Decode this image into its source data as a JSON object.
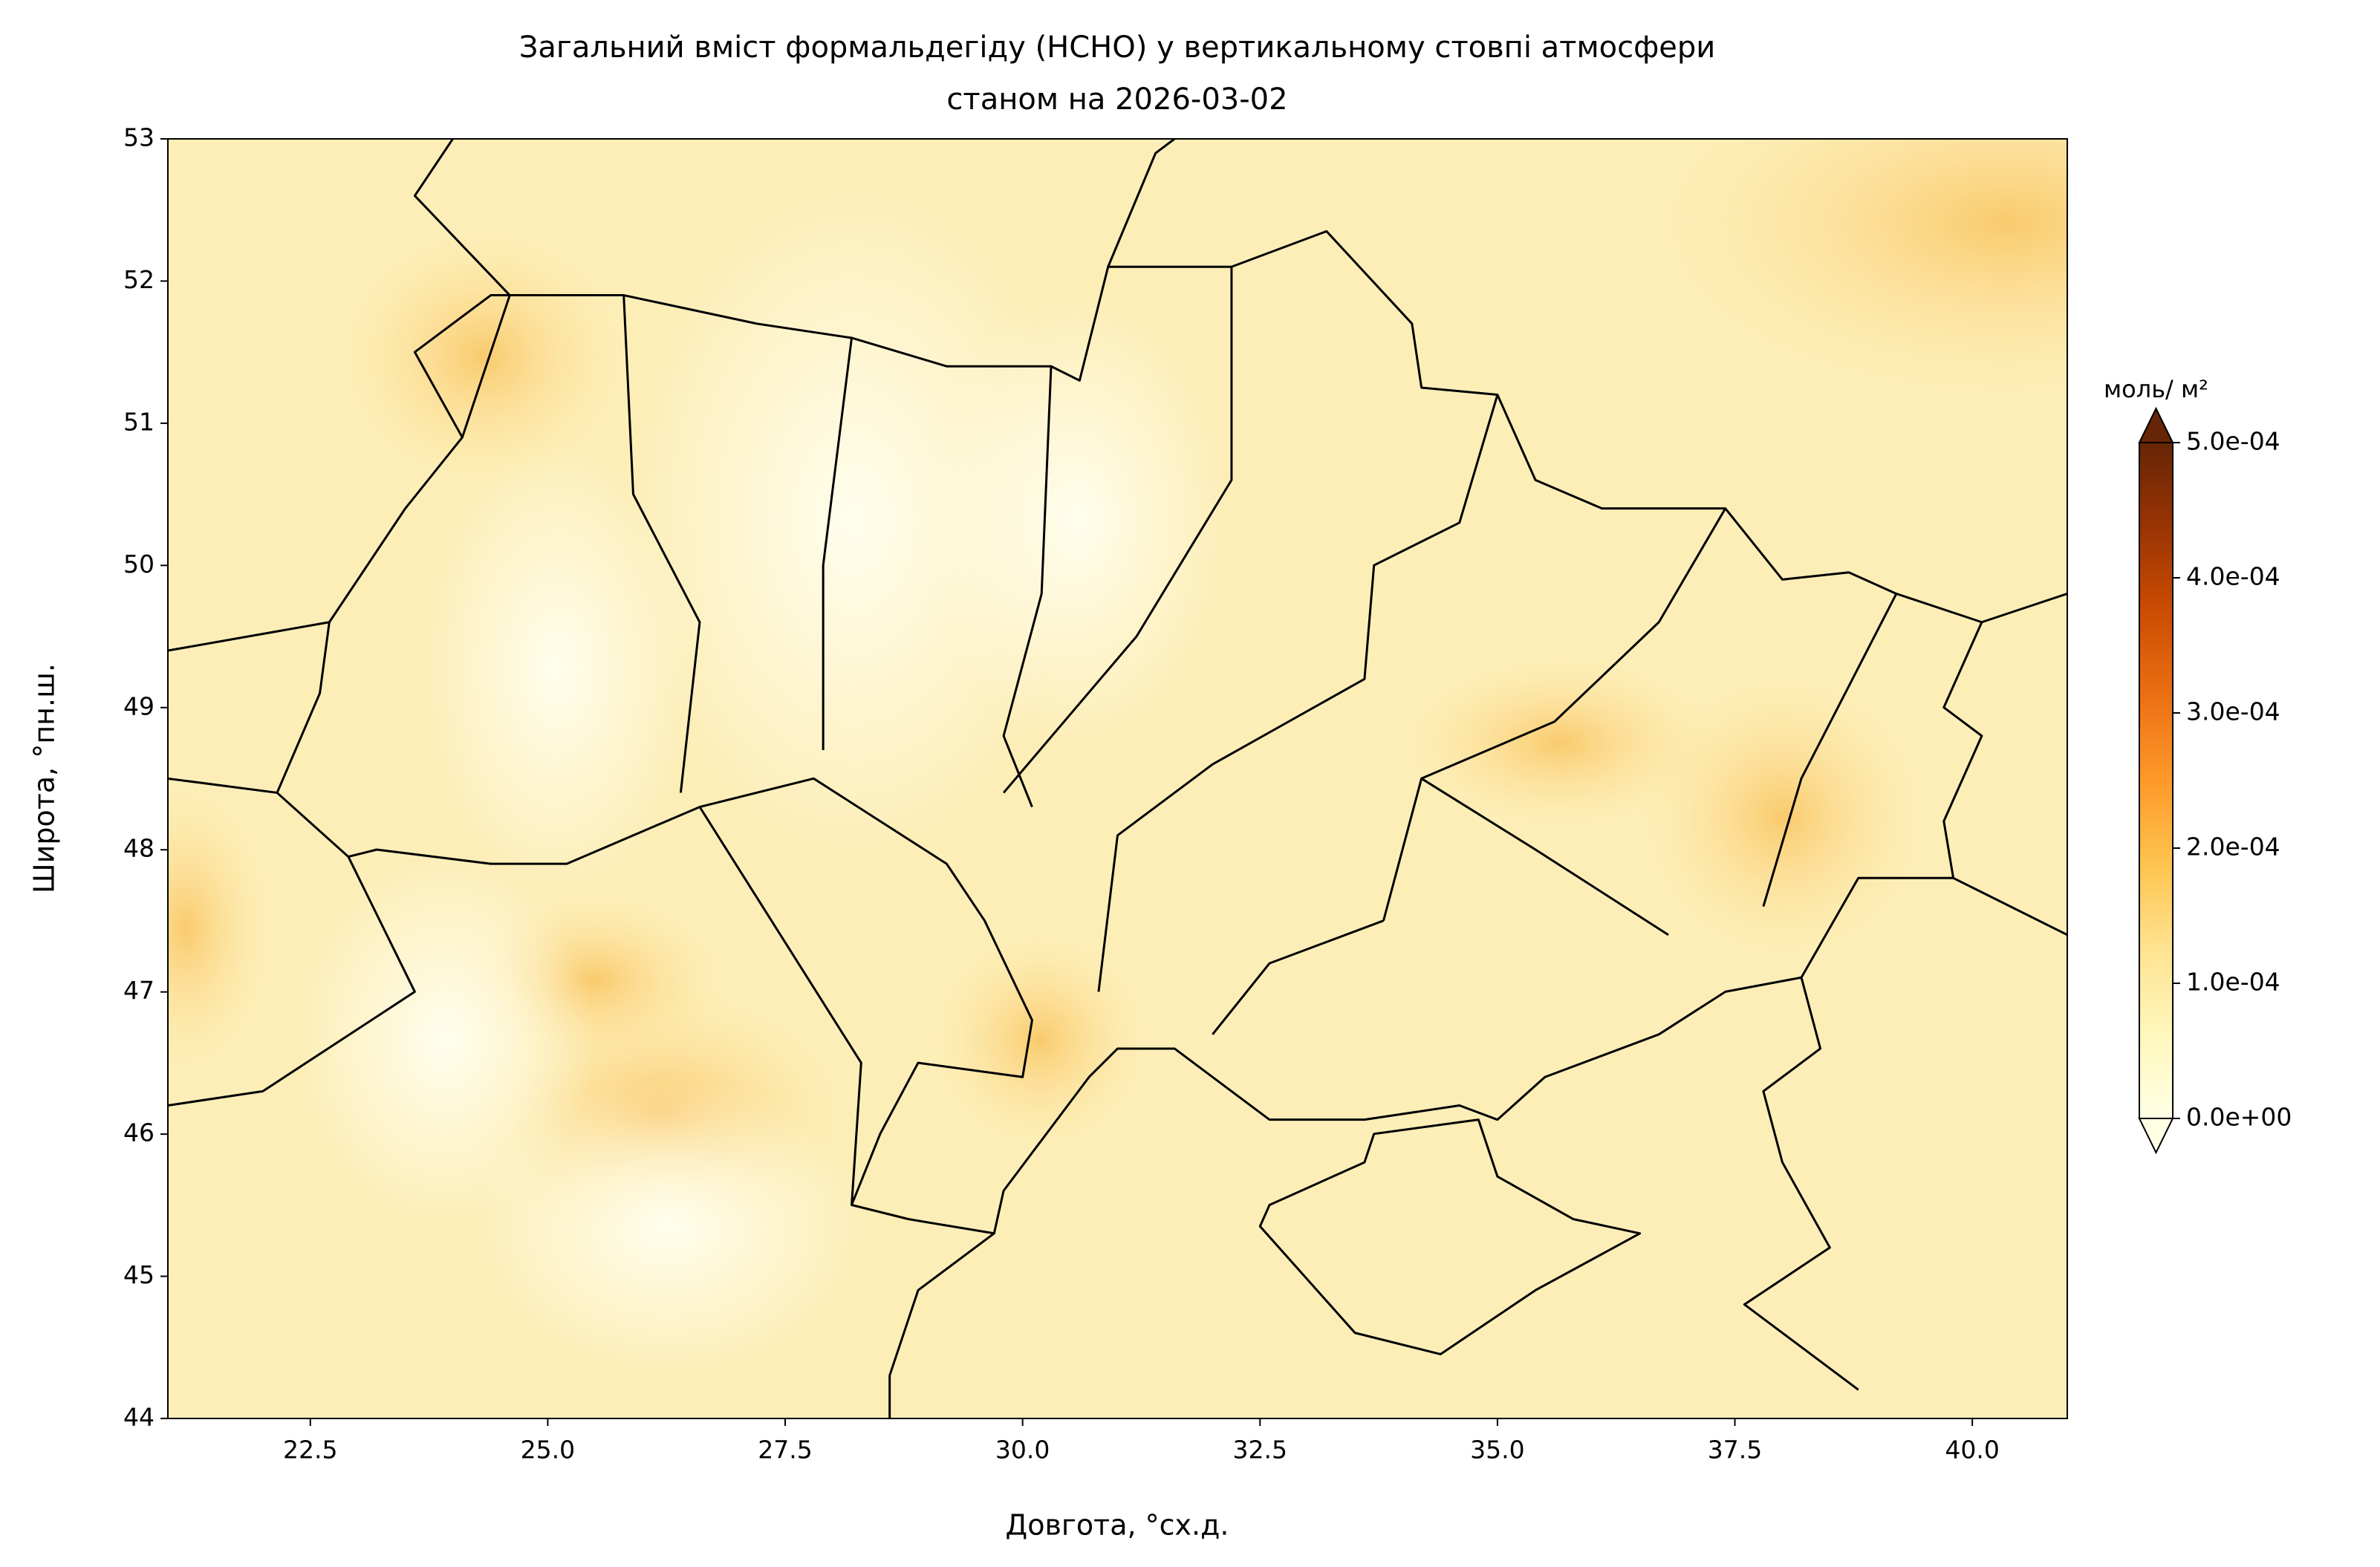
{
  "chart_data": {
    "type": "map",
    "title": "Загальний вміст формальдегіду (HCHO) у вертикальному стовпі атмосфери",
    "subtitle": "станом на 2026-03-02",
    "x_label": "Довгота, °сх.д.",
    "y_label": "Широта, °пн.ш.",
    "xlim": [
      21,
      41
    ],
    "ylim": [
      44,
      53
    ],
    "xticks": [
      22.5,
      {
        "value": 25,
        "label": "25.0"
      },
      27.5,
      {
        "value": 30,
        "label": "30.0"
      },
      32.5,
      {
        "value": 35,
        "label": "35.0"
      },
      37.5,
      {
        "value": 40,
        "label": "40.0"
      }
    ],
    "yticks": [
      44,
      45,
      46,
      47,
      48,
      49,
      50,
      51,
      52,
      53
    ],
    "colorbar": {
      "label": "моль/ м²",
      "lim": [
        0,
        0.0005
      ],
      "ticks": [
        {
          "value": 0,
          "label": "0.0e+00"
        },
        {
          "value": 0.0001,
          "label": "1.0e-04"
        },
        {
          "value": 0.0002,
          "label": "2.0e-04"
        },
        {
          "value": 0.0003,
          "label": "3.0e-04"
        },
        {
          "value": 0.0004,
          "label": "4.0e-04"
        },
        {
          "value": 0.0005,
          "label": "5.0e-04"
        }
      ],
      "colors": [
        "#ffffe5",
        "#fff7bc",
        "#fee391",
        "#fec44f",
        "#fe9929",
        "#ec7014",
        "#cc4c02",
        "#993404",
        "#662506"
      ]
    }
  }
}
